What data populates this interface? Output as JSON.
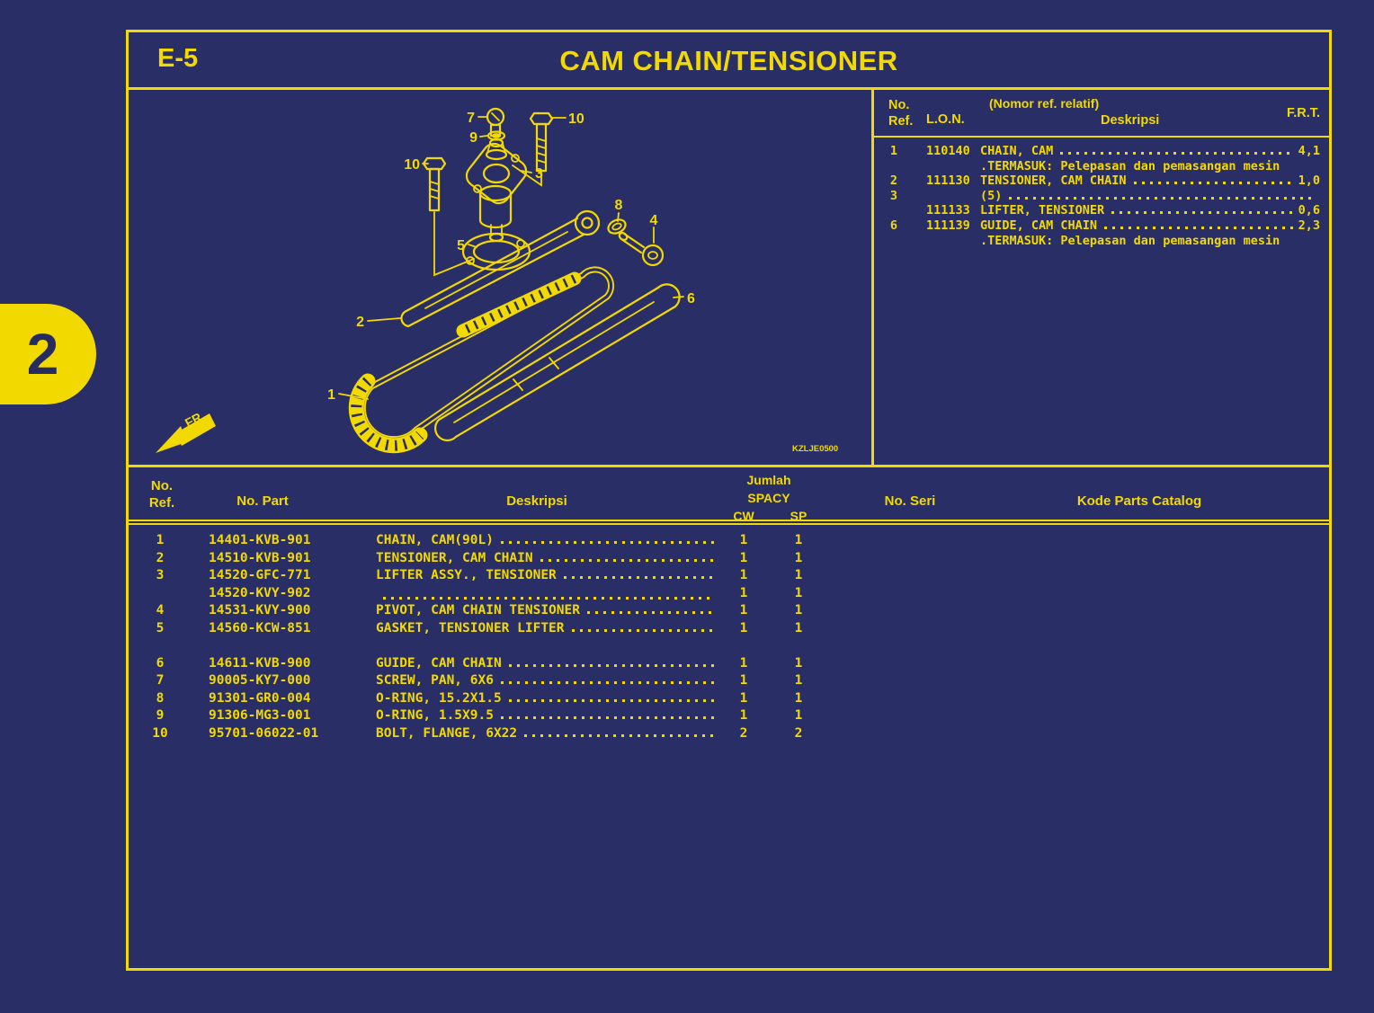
{
  "colors": {
    "background": "#2A2E66",
    "accent_yellow": "#F2D900",
    "tab_text": "#262B60"
  },
  "page": {
    "side_tab": "2"
  },
  "header": {
    "section": "E-5",
    "title": "CAM CHAIN/TENSIONER"
  },
  "diagram": {
    "code": "KZLJE0500",
    "fr_label": "FR.",
    "callouts": {
      "c1": "1",
      "c2": "2",
      "c3": "3",
      "c4": "4",
      "c5": "5",
      "c6": "6",
      "c7": "7",
      "c8": "8",
      "c9": "9",
      "c10": "10"
    }
  },
  "frt_table": {
    "headers": {
      "ref": "No.\nRef.",
      "lon": "L.O.N.",
      "note": "(Nomor ref. relatif)",
      "deskripsi": "Deskripsi",
      "frt": "F.R.T."
    },
    "rows": [
      {
        "ref": "1",
        "lon": "110140",
        "desc": "CHAIN, CAM",
        "dots": true,
        "frt": "4,1"
      },
      {
        "ref": "",
        "lon": "",
        "desc": ".TERMASUK: Pelepasan dan pemasangan mesin",
        "dots": false,
        "frt": ""
      },
      {
        "ref": "2",
        "lon": "111130",
        "desc": "TENSIONER, CAM CHAIN",
        "dots": true,
        "frt": "1,0"
      },
      {
        "ref": "3",
        "lon": "",
        "desc": "(5)",
        "dots": true,
        "frt": ""
      },
      {
        "ref": "",
        "lon": "111133",
        "desc": "LIFTER, TENSIONER",
        "dots": true,
        "frt": "0,6"
      },
      {
        "ref": "6",
        "lon": "111139",
        "desc": "GUIDE, CAM CHAIN",
        "dots": true,
        "frt": "2,3"
      },
      {
        "ref": "",
        "lon": "",
        "desc": ".TERMASUK: Pelepasan dan pemasangan mesin",
        "dots": false,
        "frt": ""
      }
    ]
  },
  "parts_table": {
    "headers": {
      "ref": "No.\nRef.",
      "part": "No. Part",
      "deskripsi": "Deskripsi",
      "jumlah": "Jumlah",
      "spacy": "SPACY",
      "cw": "CW",
      "sp": "SP",
      "seri": "No. Seri",
      "kode": "Kode Parts Catalog"
    },
    "rows": [
      {
        "ref": "1",
        "part": "14401-KVB-901",
        "desc": "CHAIN, CAM(90L)",
        "dots": true,
        "cw": "1",
        "sp": "1"
      },
      {
        "ref": "2",
        "part": "14510-KVB-901",
        "desc": "TENSIONER, CAM CHAIN",
        "dots": true,
        "cw": "1",
        "sp": "1"
      },
      {
        "ref": "3",
        "part": "14520-GFC-771",
        "desc": "LIFTER ASSY., TENSIONER",
        "dots": true,
        "cw": "1",
        "sp": "1"
      },
      {
        "ref": "",
        "part": "14520-KVY-902",
        "desc": "",
        "dots": true,
        "cw": "1",
        "sp": "1"
      },
      {
        "ref": "4",
        "part": "14531-KVY-900",
        "desc": "PIVOT, CAM CHAIN TENSIONER",
        "dots": true,
        "cw": "1",
        "sp": "1"
      },
      {
        "ref": "5",
        "part": "14560-KCW-851",
        "desc": "GASKET, TENSIONER LIFTER",
        "dots": true,
        "cw": "1",
        "sp": "1"
      },
      {
        "spacer": true
      },
      {
        "ref": "6",
        "part": "14611-KVB-900",
        "desc": "GUIDE, CAM CHAIN",
        "dots": true,
        "cw": "1",
        "sp": "1"
      },
      {
        "ref": "7",
        "part": "90005-KY7-000",
        "desc": "SCREW, PAN, 6X6",
        "dots": true,
        "cw": "1",
        "sp": "1"
      },
      {
        "ref": "8",
        "part": "91301-GR0-004",
        "desc": "O-RING, 15.2X1.5",
        "dots": true,
        "cw": "1",
        "sp": "1"
      },
      {
        "ref": "9",
        "part": "91306-MG3-001",
        "desc": "O-RING, 1.5X9.5",
        "dots": true,
        "cw": "1",
        "sp": "1"
      },
      {
        "ref": "10",
        "part": "95701-06022-01",
        "desc": "BOLT, FLANGE, 6X22",
        "dots": true,
        "cw": "2",
        "sp": "2"
      }
    ]
  }
}
